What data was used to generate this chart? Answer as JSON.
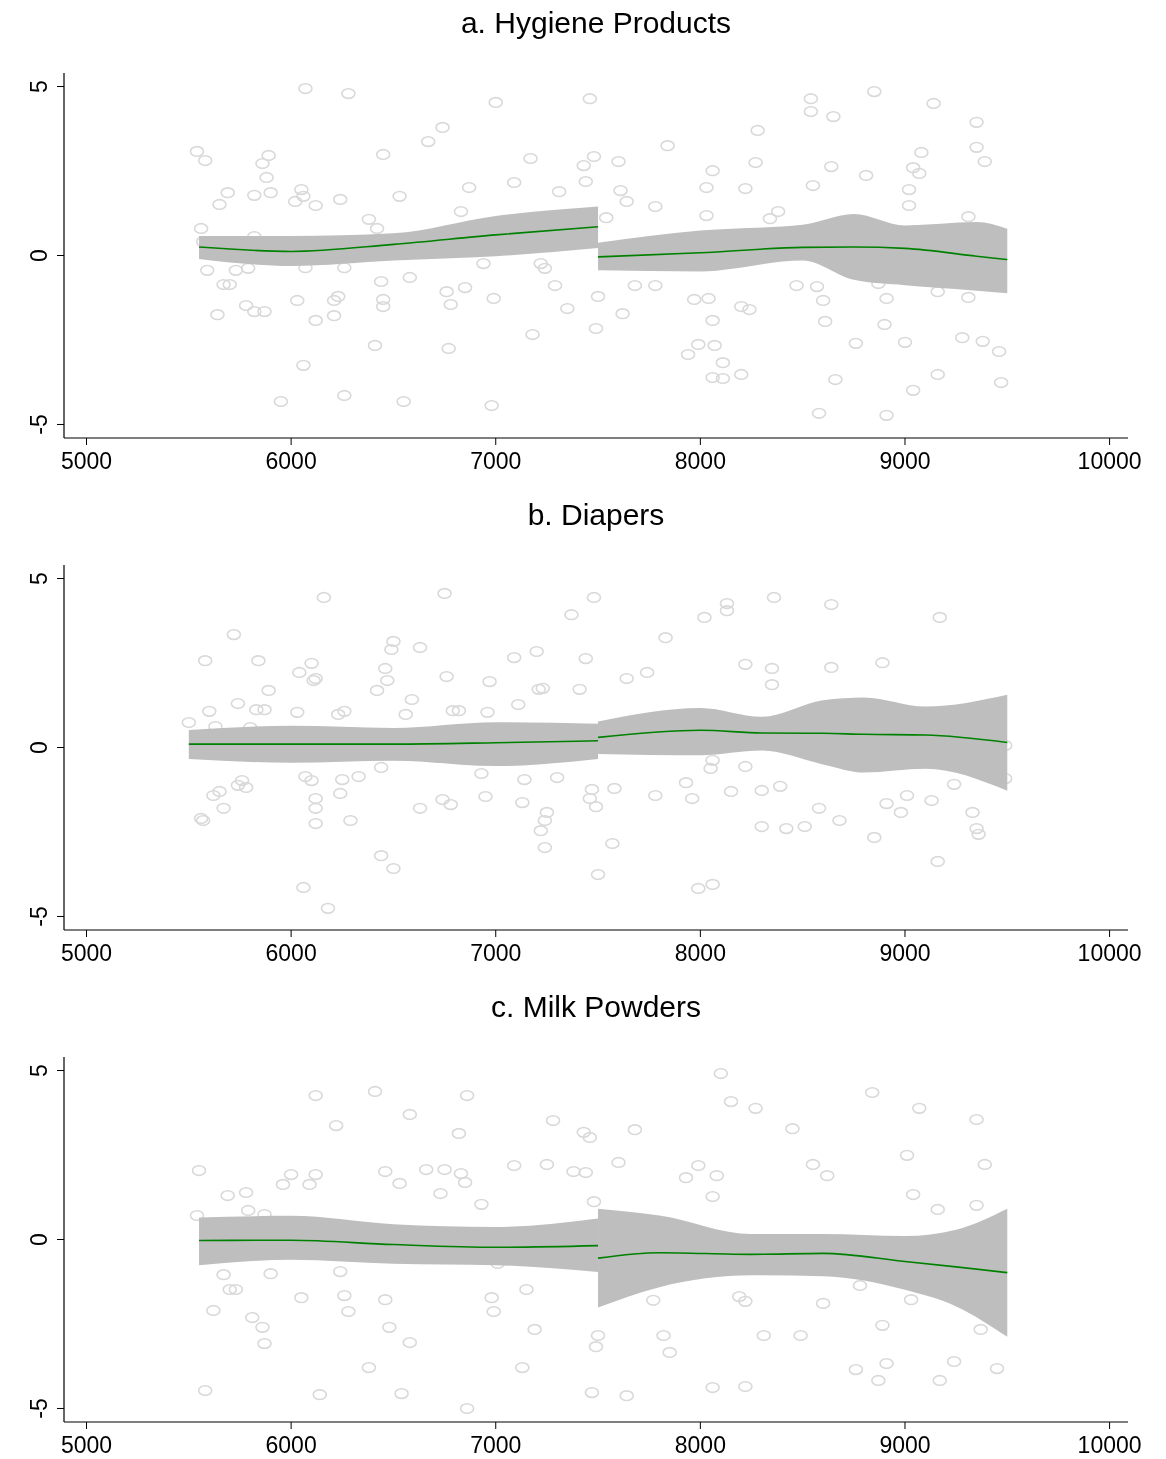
{
  "chart_data": [
    {
      "type": "scatter",
      "title": "a. Hygiene Products",
      "xlim": [
        4890,
        10090
      ],
      "ylim": [
        -5.4,
        5.4
      ],
      "xticks": [
        5000,
        6000,
        7000,
        8000,
        9000,
        10000
      ],
      "yticks": [
        -5,
        0,
        5
      ],
      "grid": false,
      "series": [
        {
          "type": "scatter",
          "color": "#d9d9d9",
          "marker": "circle",
          "x": [
            5540,
            5580,
            5560,
            5570,
            5590,
            5640,
            5650,
            5690,
            5700,
            5670,
            5730,
            5790,
            5780,
            5870,
            5820,
            5890,
            5860,
            5880,
            5820,
            5900,
            5820,
            5950,
            6050,
            6020,
            6060,
            6070,
            6060,
            6030,
            6070,
            6120,
            6120,
            6240,
            6210,
            6230,
            6210,
            6260,
            6280,
            6260,
            6380,
            6420,
            6410,
            6450,
            6450,
            6450,
            6440,
            6530,
            6550,
            6580,
            6670,
            6740,
            6760,
            6770,
            6780,
            6830,
            6850,
            6870,
            6940,
            6980,
            6990,
            7000,
            7090,
            7170,
            7180,
            7220,
            7240,
            7290,
            7310,
            7350,
            7430,
            7440,
            7460,
            7480,
            7490,
            7500,
            7540,
            7600,
            7610,
            7640,
            7620,
            7680,
            7780,
            7780,
            7840,
            7940,
            7970,
            7990,
            8030,
            8030,
            8040,
            8060,
            8070,
            8060,
            8060,
            8110,
            8110,
            8200,
            8200,
            8240,
            8220,
            8280,
            8270,
            8340,
            8380,
            8470,
            8550,
            8540,
            8540,
            8570,
            8600,
            8580,
            8610,
            8650,
            8640,
            8660,
            8760,
            8810,
            8850,
            8870,
            8910,
            8910,
            8900,
            9000,
            9020,
            9040,
            9080,
            9070,
            9040,
            9020,
            9140,
            9160,
            9280,
            9310,
            9310,
            9350,
            9350,
            9390,
            9380,
            9460,
            9470,
            9160
          ],
          "values": [
            3.08,
            2.81,
            0.8,
            0.41,
            -0.44,
            -1.75,
            1.51,
            1.86,
            -0.86,
            -0.86,
            -0.44,
            -0.38,
            -1.48,
            -1.66,
            -1.66,
            2.96,
            2.72,
            2.31,
            1.78,
            1.86,
            0.56,
            -4.32,
            1.95,
            1.6,
            1.75,
            4.94,
            -3.25,
            -1.33,
            -0.36,
            -1.92,
            1.48,
            1.66,
            -1.33,
            -1.21,
            -1.78,
            -4.14,
            4.79,
            -0.36,
            1.07,
            0.8,
            -2.66,
            2.99,
            -1.3,
            -1.51,
            -0.77,
            1.75,
            -4.32,
            -0.65,
            3.37,
            3.79,
            -1.07,
            -2.75,
            -1.45,
            1.3,
            -0.95,
            2.01,
            -0.24,
            -4.44,
            -1.27,
            4.53,
            2.16,
            2.87,
            -2.34,
            -0.24,
            -0.38,
            -0.89,
            1.89,
            -1.57,
            2.66,
            2.19,
            4.64,
            2.93,
            -2.16,
            -1.21,
            1.12,
            2.78,
            1.92,
            1.6,
            -1.72,
            -0.89,
            -0.89,
            1.45,
            3.25,
            -2.93,
            -1.3,
            -2.63,
            1.18,
            2.01,
            -1.27,
            -1.92,
            -2.66,
            2.51,
            -3.61,
            -3.64,
            -3.17,
            -3.52,
            -1.51,
            -1.6,
            1.98,
            3.7,
            2.75,
            1.09,
            1.3,
            -0.89,
            2.07,
            4.64,
            4.26,
            -0.92,
            -1.33,
            -4.67,
            -1.95,
            4.11,
            2.63,
            -3.67,
            -2.6,
            2.37,
            4.85,
            -0.83,
            -4.73,
            -1.27,
            -2.04,
            -2.57,
            1.95,
            2.6,
            3.05,
            2.43,
            -3.99,
            1.48,
            4.5,
            -1.07,
            -2.43,
            -1.24,
            1.15,
            3.94,
            3.2,
            2.78,
            -2.54,
            -2.84,
            -3.76,
            -3.52
          ]
        },
        {
          "type": "line",
          "color": "#008000",
          "x": [
            5550,
            6000,
            6500,
            7000,
            7500
          ],
          "values": [
            0.25,
            0.12,
            0.33,
            0.61,
            0.85
          ],
          "lower": [
            -0.1,
            -0.31,
            -0.15,
            -0.02,
            0.22
          ],
          "upper": [
            0.58,
            0.58,
            0.66,
            1.17,
            1.45
          ]
        },
        {
          "type": "line",
          "color": "#008000",
          "x": [
            7500,
            8000,
            8500,
            8750,
            9000,
            9350,
            9500
          ],
          "values": [
            -0.04,
            0.08,
            0.24,
            0.25,
            0.21,
            -0.02,
            -0.12
          ],
          "lower": [
            -0.44,
            -0.47,
            -0.15,
            -0.72,
            -0.88,
            -1.04,
            -1.12
          ],
          "upper": [
            0.38,
            0.74,
            0.91,
            1.23,
            0.89,
            0.99,
            0.79
          ]
        }
      ]
    },
    {
      "type": "scatter",
      "title": "b. Diapers",
      "xlim": [
        4890,
        10090
      ],
      "ylim": [
        -5.4,
        5.4
      ],
      "xticks": [
        5000,
        6000,
        7000,
        8000,
        9000,
        10000
      ],
      "yticks": [
        -5,
        0,
        5
      ],
      "grid": false,
      "series": [
        {
          "type": "scatter",
          "color": "#d9d9d9",
          "marker": "circle",
          "x": [
            5500,
            5580,
            5600,
            5560,
            5570,
            5620,
            5650,
            5670,
            5630,
            5720,
            5740,
            5760,
            5780,
            5740,
            5830,
            5870,
            5840,
            5890,
            5800,
            6030,
            6060,
            6040,
            6100,
            6110,
            6120,
            6070,
            6100,
            6120,
            6120,
            6120,
            6160,
            6180,
            6230,
            6260,
            6250,
            6240,
            6290,
            6330,
            6420,
            6440,
            6460,
            6490,
            6500,
            6500,
            6440,
            6470,
            6560,
            6590,
            6630,
            6630,
            6750,
            6760,
            6740,
            6780,
            6790,
            6820,
            6930,
            6950,
            6970,
            6960,
            7090,
            7110,
            7130,
            7140,
            7200,
            7210,
            7230,
            7240,
            7220,
            7250,
            7240,
            7300,
            7370,
            7410,
            7440,
            7460,
            7480,
            7470,
            7500,
            7490,
            7580,
            7570,
            7640,
            7740,
            7830,
            7780,
            7930,
            7960,
            7990,
            8020,
            8060,
            8050,
            8060,
            8130,
            8130,
            8150,
            8220,
            8220,
            8300,
            8300,
            8350,
            8350,
            8360,
            8390,
            8420,
            8510,
            8580,
            8640,
            8640,
            8680,
            8850,
            8890,
            8910,
            8980,
            9010,
            9130,
            9160,
            9170,
            9240,
            9330,
            9350,
            9360,
            9490,
            9490
          ],
          "values": [
            0.74,
            2.57,
            1.07,
            -2.1,
            -2.16,
            -1.42,
            -1.3,
            -1.8,
            0.62,
            3.34,
            1.3,
            -0.98,
            -1.18,
            -1.12,
            1.12,
            1.12,
            2.57,
            1.69,
            0.59,
            1.04,
            -4.14,
            2.22,
            2.49,
            1.98,
            2.04,
            -0.86,
            -0.98,
            -1.51,
            -1.8,
            -2.25,
            4.44,
            -4.76,
            0.98,
            1.07,
            -0.95,
            -1.36,
            -2.16,
            -0.86,
            1.69,
            -3.2,
            2.34,
            2.9,
            3.14,
            -3.58,
            -0.59,
            1.98,
            0.98,
            1.42,
            -1.8,
            2.96,
            4.56,
            2.1,
            -1.54,
            -1.69,
            1.09,
            1.09,
            -0.77,
            -1.45,
            1.95,
            1.04,
            2.66,
            1.27,
            -1.63,
            -0.95,
            2.84,
            1.72,
            1.75,
            -2.16,
            -2.46,
            -1.92,
            -2.96,
            -0.89,
            3.93,
            1.72,
            2.63,
            -1.51,
            4.44,
            -1.24,
            -3.76,
            -1.75,
            -1.21,
            -2.84,
            2.04,
            2.22,
            3.25,
            -1.42,
            -1.04,
            -1.51,
            -4.17,
            3.85,
            -4.05,
            -0.62,
            -0.38,
            4.26,
            4.05,
            -1.3,
            2.46,
            -0.56,
            -1.27,
            -2.34,
            2.34,
            1.86,
            4.44,
            -1.15,
            -2.4,
            -2.34,
            -1.8,
            4.23,
            2.37,
            -2.16,
            -2.66,
            2.51,
            -1.66,
            -1.92,
            -1.42,
            -1.57,
            -3.37,
            3.85,
            -1.09,
            -1.92,
            -2.4,
            -2.57,
            0.06,
            -0.92
          ]
        },
        {
          "type": "line",
          "color": "#008000",
          "x": [
            5500,
            6000,
            6500,
            7000,
            7500
          ],
          "values": [
            0.1,
            0.1,
            0.1,
            0.14,
            0.2
          ],
          "lower": [
            -0.34,
            -0.45,
            -0.39,
            -0.55,
            -0.34
          ],
          "upper": [
            0.52,
            0.64,
            0.58,
            0.75,
            0.7
          ]
        },
        {
          "type": "line",
          "color": "#008000",
          "x": [
            7500,
            8000,
            8300,
            8600,
            8800,
            9100,
            9500
          ],
          "values": [
            0.3,
            0.51,
            0.43,
            0.42,
            0.39,
            0.37,
            0.15
          ],
          "lower": [
            -0.19,
            -0.23,
            -0.09,
            -0.5,
            -0.74,
            -0.63,
            -1.28
          ],
          "upper": [
            0.77,
            1.17,
            0.91,
            1.4,
            1.48,
            1.21,
            1.56
          ]
        }
      ]
    },
    {
      "type": "scatter",
      "title": "c. Milk Powders",
      "xlim": [
        4890,
        10090
      ],
      "ylim": [
        -5.4,
        5.4
      ],
      "xticks": [
        5000,
        6000,
        7000,
        8000,
        9000,
        10000
      ],
      "yticks": [
        -5,
        0,
        5
      ],
      "grid": false,
      "series": [
        {
          "type": "scatter",
          "color": "#d9d9d9",
          "marker": "circle",
          "x": [
            5550,
            5580,
            5540,
            5620,
            5670,
            5690,
            5700,
            5730,
            5780,
            5790,
            5810,
            5860,
            5870,
            5870,
            5900,
            5960,
            6000,
            6050,
            6090,
            6120,
            6120,
            6140,
            6220,
            6240,
            6260,
            6280,
            6380,
            6410,
            6460,
            6460,
            6480,
            6530,
            6540,
            6580,
            6580,
            6660,
            6730,
            6750,
            6820,
            6830,
            6860,
            6860,
            6850,
            6930,
            6980,
            6990,
            7010,
            7090,
            7130,
            7150,
            7190,
            7250,
            7280,
            7380,
            7430,
            7440,
            7460,
            7470,
            7480,
            7490,
            7500,
            7600,
            7640,
            7680,
            7770,
            7820,
            7850,
            7930,
            7990,
            8060,
            8060,
            8080,
            8100,
            8150,
            8220,
            8220,
            8270,
            8310,
            8450,
            8490,
            8550,
            8600,
            8620,
            8760,
            8840,
            8870,
            8890,
            8910,
            9010,
            9030,
            9040,
            9070,
            9170,
            9240,
            9350,
            9390,
            9450,
            9350,
            9160,
            8780,
            8190,
            9370
          ],
          "values": [
            2.04,
            -4.47,
            0.71,
            -2.1,
            -1.04,
            1.3,
            -1.48,
            -1.48,
            1.39,
            0.86,
            -2.31,
            -2.6,
            -3.08,
            0.74,
            -1.01,
            1.63,
            1.92,
            -1.72,
            1.63,
            4.26,
            1.92,
            -4.59,
            3.37,
            -0.95,
            -1.66,
            -2.13,
            -3.79,
            4.38,
            -1.78,
            2.01,
            -2.6,
            1.66,
            -4.56,
            3.7,
            -3.05,
            2.07,
            1.36,
            2.07,
            3.14,
            1.95,
            -5,
            4.26,
            1.69,
            1.04,
            -1.72,
            -2.13,
            -0.71,
            2.19,
            -3.79,
            -1.48,
            -2.66,
            2.22,
            3.52,
            2.01,
            3.17,
            1.98,
            3.02,
            -4.53,
            1.12,
            -3.17,
            -2.84,
            2.28,
            -4.62,
            3.25,
            -1.8,
            -2.84,
            -3.34,
            1.83,
            2.19,
            1.27,
            -4.38,
            1.89,
            4.91,
            4.08,
            -4.35,
            -1.83,
            3.88,
            -2.84,
            3.28,
            -2.84,
            2.22,
            -1.89,
            1.89,
            -3.85,
            4.35,
            -4.17,
            -2.54,
            -3.67,
            2.49,
            -1.78,
            1.33,
            3.88,
            -4.17,
            -3.61,
            3.55,
            2.22,
            -3.82,
            1.01,
            0.89,
            -1.36,
            -1.69,
            -2.66
          ]
        },
        {
          "type": "line",
          "color": "#008000",
          "x": [
            5550,
            6000,
            6500,
            7000,
            7500
          ],
          "values": [
            -0.03,
            -0.02,
            -0.15,
            -0.23,
            -0.18
          ],
          "lower": [
            -0.76,
            -0.6,
            -0.72,
            -0.76,
            -0.96
          ],
          "upper": [
            0.65,
            0.7,
            0.45,
            0.37,
            0.62
          ]
        },
        {
          "type": "line",
          "color": "#008000",
          "x": [
            7500,
            7800,
            8250,
            8600,
            9000,
            9250,
            9500
          ],
          "values": [
            -0.55,
            -0.39,
            -0.44,
            -0.41,
            -0.65,
            -0.81,
            -0.98
          ],
          "lower": [
            -2.01,
            -1.41,
            -1.06,
            -1.09,
            -1.49,
            -1.98,
            -2.88
          ],
          "upper": [
            0.91,
            0.71,
            0.16,
            0.16,
            0.1,
            0.29,
            0.91
          ]
        }
      ]
    }
  ]
}
